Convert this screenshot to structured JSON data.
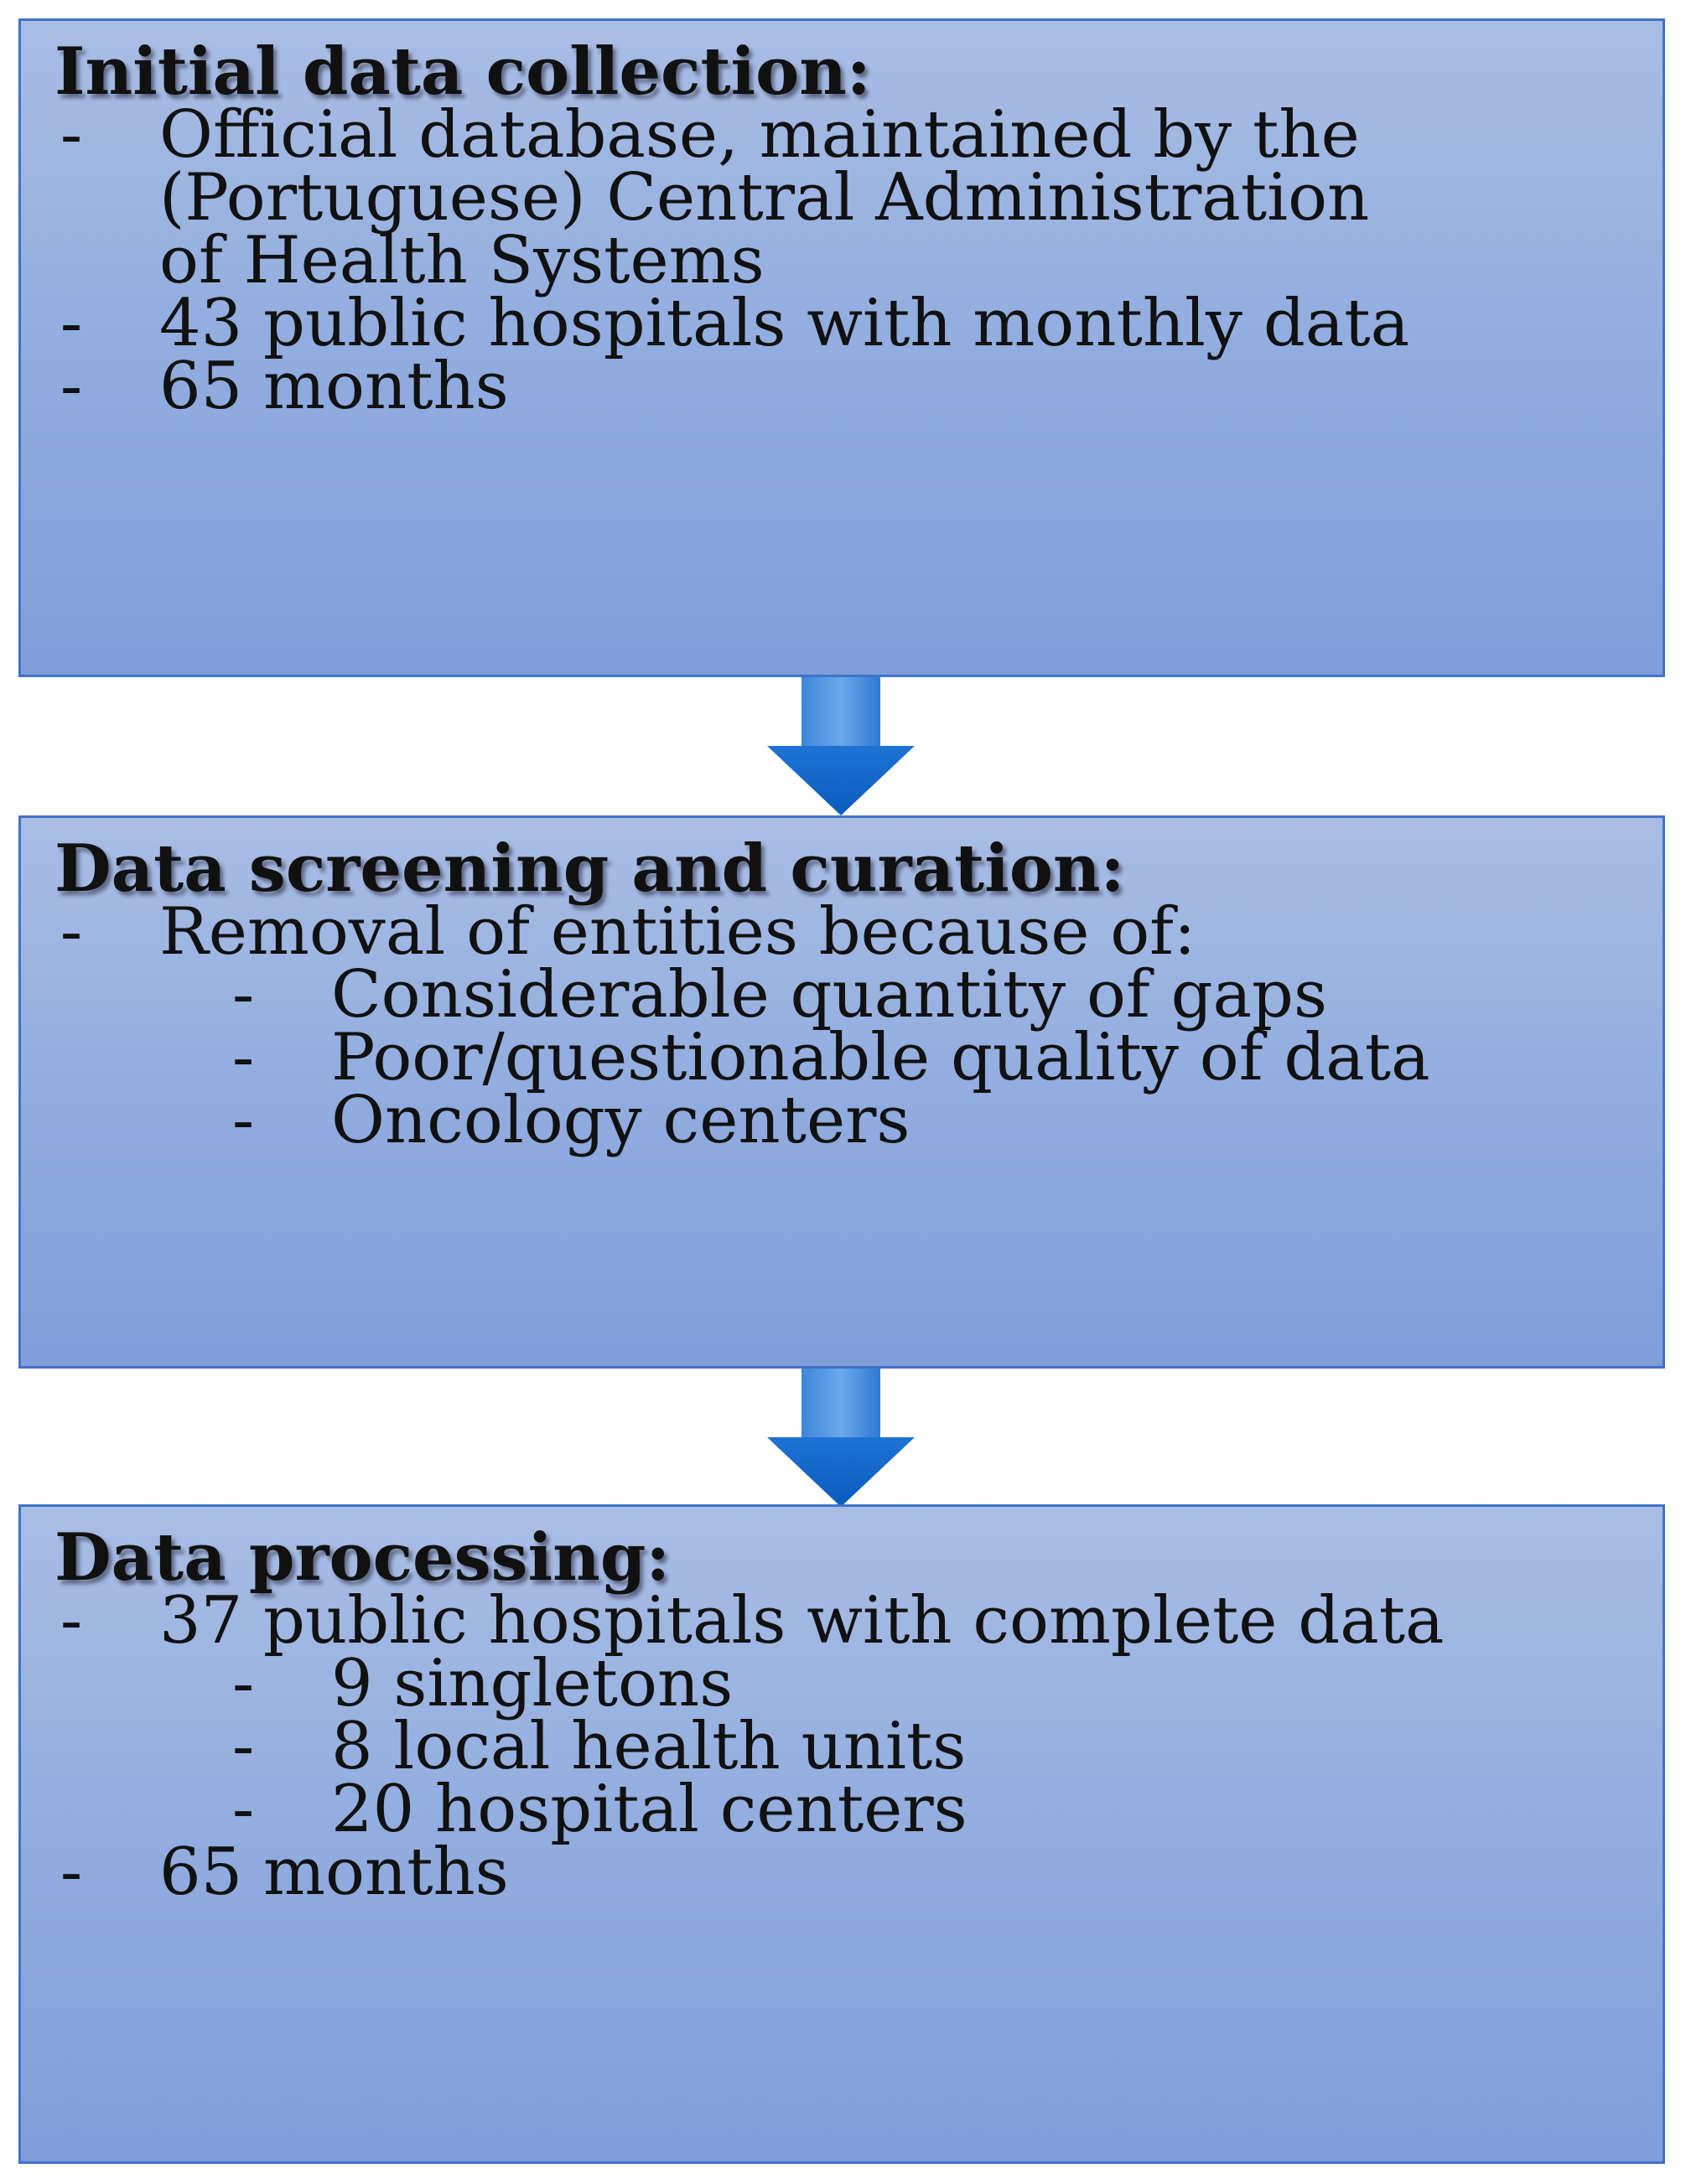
{
  "stages": [
    {
      "heading": "Initial data collection:",
      "items": [
        {
          "dash": "-",
          "lines": [
            "Official database, maintained by the",
            "(Portuguese) Central Administration",
            "of Health Systems"
          ]
        },
        {
          "dash": "-",
          "lines": [
            "43 public hospitals with monthly data"
          ]
        },
        {
          "dash": "-",
          "lines": [
            "65 months"
          ]
        }
      ]
    },
    {
      "heading": "Data screening and curation:",
      "items": [
        {
          "dash": "-",
          "lines": [
            "Removal of entities because of:"
          ]
        },
        {
          "dash": "-",
          "lines": [
            "Considerable quantity of gaps"
          ]
        },
        {
          "dash": "-",
          "lines": [
            "Poor/questionable quality of data"
          ]
        },
        {
          "dash": "-",
          "lines": [
            "Oncology centers"
          ]
        }
      ]
    },
    {
      "heading": "Data processing:",
      "items": [
        {
          "dash": "-",
          "lines": [
            "37 public hospitals with complete data"
          ]
        },
        {
          "dash": "-",
          "lines": [
            "9 singletons"
          ]
        },
        {
          "dash": "-",
          "lines": [
            "8 local health units"
          ]
        },
        {
          "dash": "-",
          "lines": [
            "20 hospital centers"
          ]
        },
        {
          "dash": "-",
          "lines": [
            "65 months"
          ]
        }
      ]
    }
  ],
  "colors": {
    "box_fill_top": "#a9bde4",
    "box_fill_bottom": "#7f9ed9",
    "box_border": "#3f73c9",
    "arrow_light": "#5fa0e6",
    "arrow_dark": "#0b5fc4"
  },
  "icons": [
    "down-arrow-icon",
    "down-arrow-icon"
  ]
}
